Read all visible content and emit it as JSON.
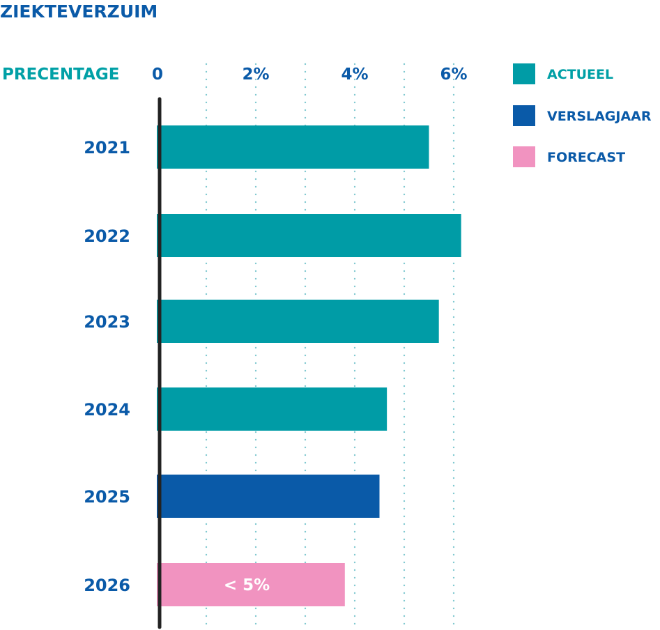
{
  "chart_data": {
    "type": "bar",
    "orientation": "horizontal",
    "title": "ZIEKTEVERZUIM",
    "value_axis_label": "PRECENTAGE",
    "xlim": [
      0,
      6.5
    ],
    "ticks": [
      {
        "value": 0,
        "label": "0"
      },
      {
        "value": 2,
        "label": "2%"
      },
      {
        "value": 4,
        "label": "4%"
      },
      {
        "value": 6,
        "label": "6%"
      }
    ],
    "gridlines": [
      1,
      2,
      3,
      4,
      5,
      6
    ],
    "grid_style": "dotted",
    "categories": [
      "2021",
      "2022",
      "2023",
      "2024",
      "2025",
      "2026"
    ],
    "values": [
      5.5,
      6.15,
      5.7,
      4.65,
      4.5,
      3.8
    ],
    "bar_series": [
      "actueel",
      "actueel",
      "actueel",
      "actueel",
      "verslagjaar",
      "forecast"
    ],
    "bar_labels": [
      "",
      "",
      "",
      "",
      "",
      "< 5%"
    ],
    "legend_position": "top-right",
    "legend": [
      {
        "key": "actueel",
        "label": "ACTUEEL",
        "color": "#009ca6"
      },
      {
        "key": "verslagjaar",
        "label": "VERSLAGJAAR",
        "color": "#0a5aa8"
      },
      {
        "key": "forecast",
        "label": "FORECAST",
        "color": "#f193c0"
      }
    ],
    "colors": {
      "title": "#0a5aa8",
      "axis_label": "#00a0a6",
      "tick": "#0a5aa8",
      "grid": "#7fc8d0",
      "axis_line": "#222222"
    }
  }
}
